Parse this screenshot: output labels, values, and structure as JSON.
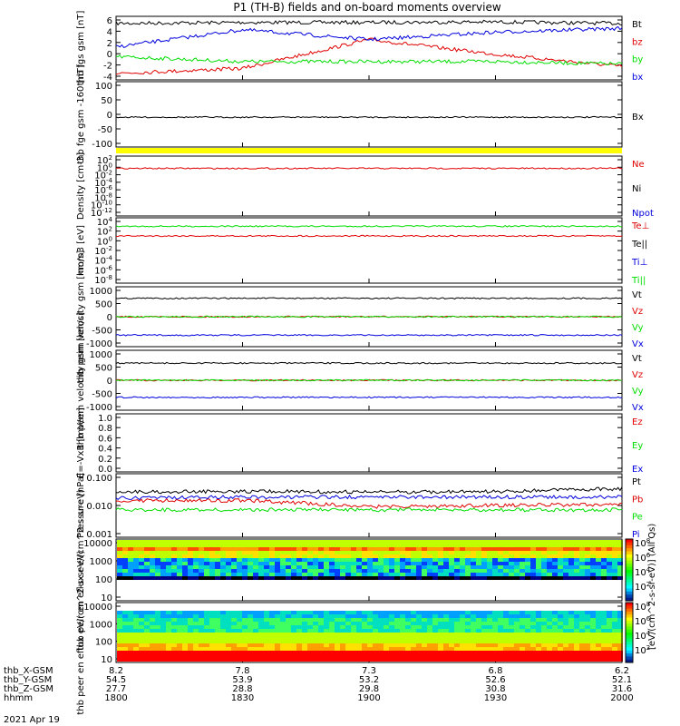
{
  "title": "P1  (TH-B) fields and on-board moments overview",
  "colorbar_label": "[eV/(cm^2-s-sr-eV)] (All Qs)",
  "colorbar_ticks": [
    "10^8",
    "10^6",
    "10^4",
    "10^2",
    "10^8",
    "10^6",
    "10^4",
    "10^2"
  ],
  "footer": {
    "rows": [
      {
        "label": "thb_X-GSM",
        "values": [
          "8.2",
          "7.8",
          "7.3",
          "6.8",
          "6.2"
        ]
      },
      {
        "label": "thb_Y-GSM",
        "values": [
          "54.5",
          "53.9",
          "53.2",
          "52.6",
          "52.1"
        ]
      },
      {
        "label": "thb_Z-GSM",
        "values": [
          "27.7",
          "28.8",
          "29.8",
          "30.8",
          "31.6"
        ]
      },
      {
        "label": "hhmm",
        "values": [
          "1800",
          "1830",
          "1900",
          "1930",
          "2000"
        ]
      }
    ],
    "date": "2021 Apr 19"
  },
  "colors": {
    "black": "#000000",
    "red": "#e00000",
    "green": "#00dd00",
    "blue": "#0000dd",
    "yellow": "#ffff00"
  },
  "chart_data": [
    {
      "type": "line",
      "id": "fgs",
      "ylabel": "thb fgs gsm [nT]",
      "ticks": [
        "6",
        "4",
        "2",
        "0",
        "-2",
        "-4"
      ],
      "ylim": [
        -5,
        6.5
      ],
      "legend": [
        {
          "name": "Bt",
          "color": "#000000"
        },
        {
          "name": "bz",
          "color": "#e00000"
        },
        {
          "name": "by",
          "color": "#00dd00"
        },
        {
          "name": "bx",
          "color": "#0000dd"
        }
      ],
      "x": [
        "1800",
        "1830",
        "1900",
        "1930",
        "2000"
      ],
      "series": [
        {
          "name": "Bt",
          "color": "#000000",
          "values": [
            5.8,
            6.0,
            6.0,
            6.1,
            5.8
          ]
        },
        {
          "name": "bz",
          "color": "#e00000",
          "values": [
            -4.4,
            -3.4,
            2.5,
            -0.5,
            -3.0
          ]
        },
        {
          "name": "by",
          "color": "#00dd00",
          "values": [
            -1.0,
            -2.0,
            -2.0,
            -2.0,
            -2.5
          ]
        },
        {
          "name": "bx",
          "color": "#0000dd",
          "values": [
            1.0,
            4.5,
            2.5,
            4.0,
            4.8
          ]
        }
      ]
    },
    {
      "type": "line",
      "id": "fge",
      "ylabel": "thb fge gsm -160 [nT]",
      "ticks": [
        "100",
        "50",
        "0",
        "-50",
        "-100"
      ],
      "ylim": [
        -130,
        105
      ],
      "legend": [
        {
          "name": "Bx",
          "color": "#000000"
        }
      ],
      "x": [
        "1800",
        "1830",
        "1900",
        "1930",
        "2000"
      ],
      "series": [
        {
          "name": "Bx",
          "color": "#000000",
          "values": [
            -24,
            -24,
            -24,
            -24,
            -24
          ]
        }
      ]
    },
    {
      "type": "line",
      "id": "density",
      "ylabel": "Density [cm-3]",
      "ticks": [
        "10^2",
        "10^0",
        "10^-2",
        "10^-4",
        "10^-6",
        "10^-8",
        "10^-10",
        "10^-12"
      ],
      "ylim": [
        "10^-12",
        "10^2"
      ],
      "legend": [
        {
          "name": "Ne",
          "color": "#e00000"
        },
        {
          "name": "Ni",
          "color": "#000000"
        },
        {
          "name": "Npot",
          "color": "#0000dd"
        }
      ],
      "x": [
        "1800",
        "1830",
        "1900",
        "1930",
        "2000"
      ],
      "series": [
        {
          "name": "Ne",
          "color": "#e00000",
          "values": [
            0.5,
            0.5,
            0.5,
            0.5,
            0.5
          ]
        }
      ]
    },
    {
      "type": "line",
      "id": "temp",
      "ylabel": "mom3 [eV]",
      "ticks": [
        "10^4",
        "10^2",
        "10^0",
        "10^-2",
        "10^-4",
        "10^-6",
        "10^-8"
      ],
      "ylim": [
        "10^-8",
        "10^4"
      ],
      "legend": [
        {
          "name": "Te⊥",
          "color": "#e00000"
        },
        {
          "name": "Te||",
          "color": "#000000"
        },
        {
          "name": "Ti⊥",
          "color": "#0000dd"
        },
        {
          "name": "Ti||",
          "color": "#00dd00"
        }
      ],
      "x": [
        "1800",
        "1830",
        "1900",
        "1930",
        "2000"
      ],
      "series": [
        {
          "name": "Te",
          "color": "#e00000",
          "values": [
            10,
            10,
            10,
            10,
            10
          ]
        },
        {
          "name": "Ti",
          "color": "#00dd00",
          "values": [
            1000,
            1000,
            1000,
            1000,
            1000
          ]
        }
      ]
    },
    {
      "type": "line",
      "id": "peim",
      "ylabel": "thb peim velocity gsm [km/s]",
      "ticks": [
        "1000",
        "500",
        "0",
        "-500",
        "-1000"
      ],
      "ylim": [
        -1000,
        1000
      ],
      "legend": [
        {
          "name": "Vt",
          "color": "#000000"
        },
        {
          "name": "Vz",
          "color": "#e00000"
        },
        {
          "name": "Vy",
          "color": "#00dd00"
        },
        {
          "name": "Vx",
          "color": "#0000dd"
        }
      ],
      "x": [
        "1800",
        "1830",
        "1900",
        "1930",
        "2000"
      ],
      "series": [
        {
          "name": "Vt",
          "color": "#000000",
          "values": [
            700,
            700,
            700,
            700,
            700
          ]
        },
        {
          "name": "Vz",
          "color": "#e00000",
          "values": [
            0,
            0,
            0,
            0,
            0
          ]
        },
        {
          "name": "Vy",
          "color": "#00dd00",
          "values": [
            0,
            0,
            0,
            0,
            0
          ]
        },
        {
          "name": "Vx",
          "color": "#0000dd",
          "values": [
            -700,
            -700,
            -700,
            -700,
            -700
          ]
        }
      ]
    },
    {
      "type": "line",
      "id": "peem",
      "ylabel": "thb peem velocity gsm [km/s]",
      "ticks": [
        "1000",
        "500",
        "0",
        "-500",
        "-1000"
      ],
      "ylim": [
        -1000,
        1000
      ],
      "legend": [
        {
          "name": "Vt",
          "color": "#000000"
        },
        {
          "name": "Vz",
          "color": "#e00000"
        },
        {
          "name": "Vy",
          "color": "#00dd00"
        },
        {
          "name": "Vx",
          "color": "#0000dd"
        }
      ],
      "x": [
        "1800",
        "1830",
        "1900",
        "1930",
        "2000"
      ],
      "series": [
        {
          "name": "Vt",
          "color": "#000000",
          "values": [
            650,
            650,
            650,
            650,
            650
          ]
        },
        {
          "name": "Vz",
          "color": "#e00000",
          "values": [
            0,
            0,
            0,
            0,
            0
          ]
        },
        {
          "name": "Vy",
          "color": "#00dd00",
          "values": [
            0,
            0,
            0,
            0,
            0
          ]
        },
        {
          "name": "Vx",
          "color": "#0000dd",
          "values": [
            -650,
            -650,
            -650,
            -650,
            -650
          ]
        }
      ]
    },
    {
      "type": "line",
      "id": "efield",
      "ylabel": "E=-VxB [mV/m]",
      "ticks": [
        "1.0",
        "0.8",
        "0.6",
        "0.4",
        "0.2",
        "0.0"
      ],
      "ylim": [
        0,
        1
      ],
      "legend": [
        {
          "name": "Ez",
          "color": "#e00000"
        },
        {
          "name": "Ey",
          "color": "#00dd00"
        },
        {
          "name": "Ex",
          "color": "#0000dd"
        }
      ],
      "x": [
        "1800",
        "1830",
        "1900",
        "1930",
        "2000"
      ],
      "series": []
    },
    {
      "type": "line",
      "id": "pressure",
      "ylabel": "Pressure [nPa]",
      "ticks": [
        "0.100",
        "0.010",
        "0.001"
      ],
      "ylim": [
        0.001,
        0.1
      ],
      "legend": [
        {
          "name": "Pt",
          "color": "#000000"
        },
        {
          "name": "Pb",
          "color": "#e00000"
        },
        {
          "name": "Pe",
          "color": "#00dd00"
        },
        {
          "name": "Pi",
          "color": "#0000dd"
        }
      ],
      "x": [
        "1800",
        "1830",
        "1900",
        "1930",
        "2000"
      ],
      "series": [
        {
          "name": "Pt",
          "color": "#000000",
          "values": [
            0.03,
            0.032,
            0.03,
            0.031,
            0.04
          ]
        },
        {
          "name": "Pb",
          "color": "#e00000",
          "values": [
            0.015,
            0.015,
            0.009,
            0.01,
            0.011
          ]
        },
        {
          "name": "Pe",
          "color": "#00dd00",
          "values": [
            0.007,
            0.007,
            0.007,
            0.007,
            0.007
          ]
        },
        {
          "name": "Pi",
          "color": "#0000dd",
          "values": [
            0.018,
            0.02,
            0.02,
            0.02,
            0.02
          ]
        }
      ]
    },
    {
      "type": "heatmap",
      "id": "peir",
      "ylabel": "thb peir en eflux eV/(cm^2-s-sr-eV)",
      "ticks": [
        "10000",
        "1000",
        "100",
        "10"
      ],
      "ylim": [
        5,
        20000
      ]
    },
    {
      "type": "heatmap",
      "id": "peer",
      "ylabel": "thb peer en eflux eV/(cm^2-s-sr-eV)",
      "ticks": [
        "10000",
        "1000",
        "100",
        "10"
      ],
      "ylim": [
        5,
        20000
      ]
    }
  ]
}
